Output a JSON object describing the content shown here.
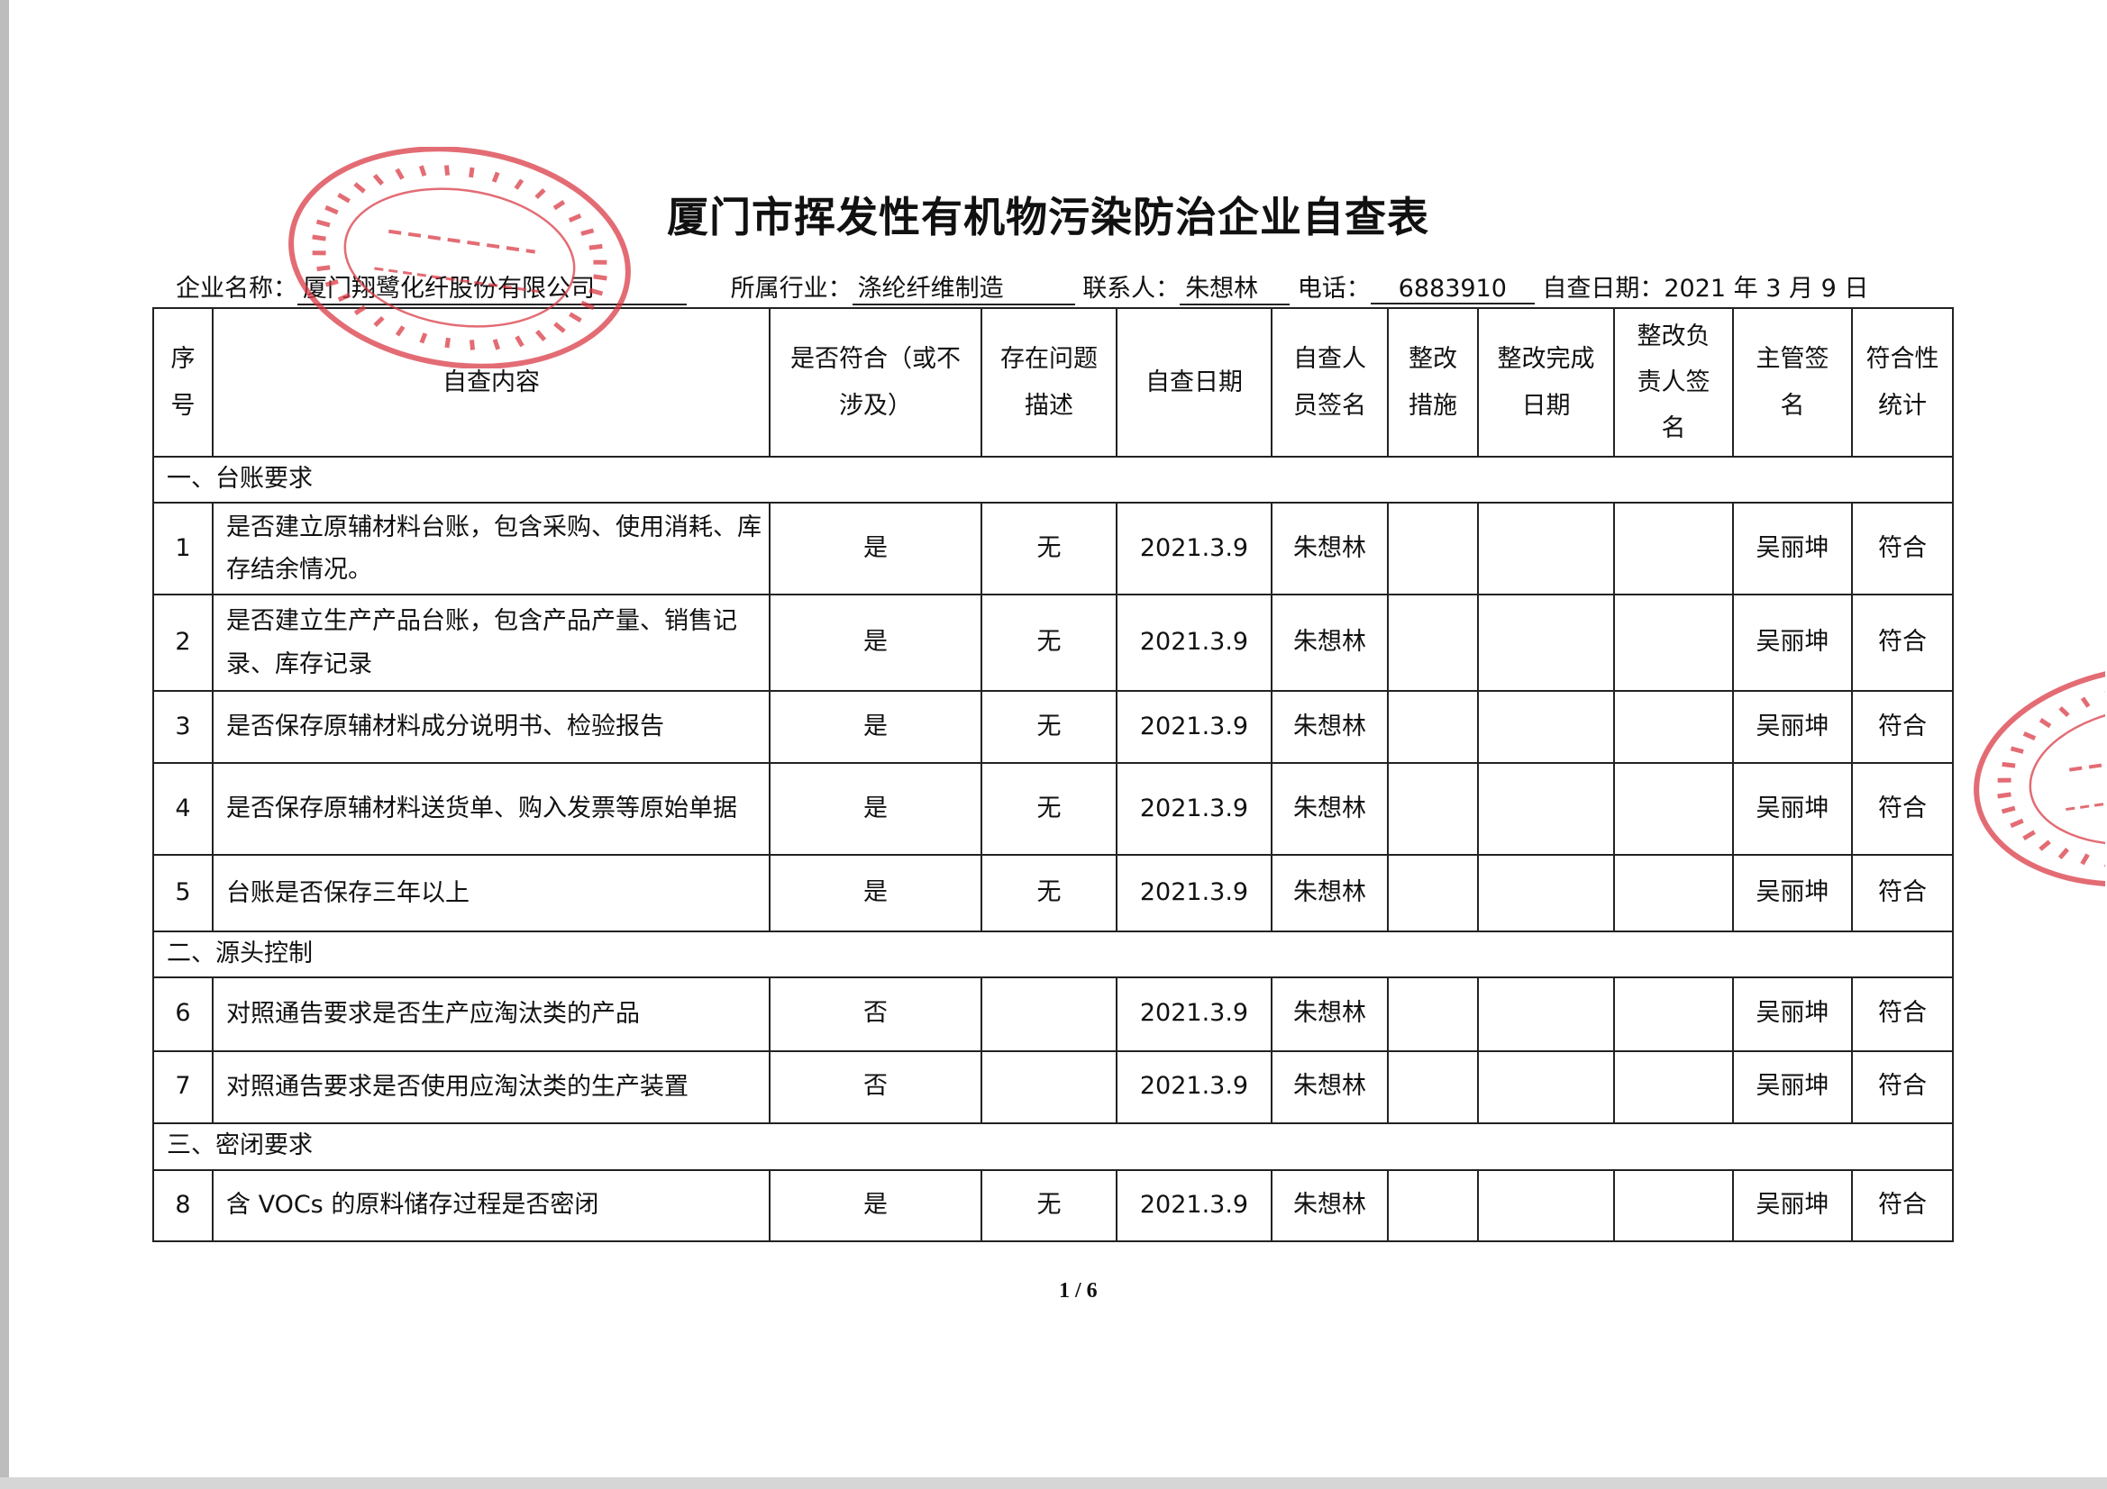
{
  "title": "厦门市挥发性有机物污染防治企业自查表",
  "info": {
    "company_label": "企业名称：",
    "company": "厦门翔鹭化纤股份有限公司",
    "industry_label": "所属行业：",
    "industry": "涤纶纤维制造",
    "contact_label": "联系人：",
    "contact": "朱想林",
    "phone_label": "电话：",
    "phone": "6883910",
    "date_label": "自查日期：2021 年 3 月 9 日"
  },
  "headers": [
    "序号",
    "自查内容",
    "是否符合（或不涉及）",
    "存在问题描述",
    "自查日期",
    "自查人员签名",
    "整改措施",
    "整改完成日期",
    "整改负责人签名",
    "主管签名",
    "符合性统计"
  ],
  "sections": [
    {
      "title": "一、台账要求",
      "rows": [
        {
          "no": "1",
          "content": "是否建立原辅材料台账，包含采购、使用消耗、库存结余情况。",
          "comply": "是",
          "issue": "无",
          "date": "2021.3.9",
          "inspector": "朱想林",
          "measure": "",
          "finish_date": "",
          "owner": "",
          "supervisor": "吴丽坤",
          "stat": "符合"
        },
        {
          "no": "2",
          "content": "是否建立生产产品台账，包含产品产量、销售记录、库存记录",
          "comply": "是",
          "issue": "无",
          "date": "2021.3.9",
          "inspector": "朱想林",
          "measure": "",
          "finish_date": "",
          "owner": "",
          "supervisor": "吴丽坤",
          "stat": "符合"
        },
        {
          "no": "3",
          "content": "是否保存原辅材料成分说明书、检验报告",
          "comply": "是",
          "issue": "无",
          "date": "2021.3.9",
          "inspector": "朱想林",
          "measure": "",
          "finish_date": "",
          "owner": "",
          "supervisor": "吴丽坤",
          "stat": "符合"
        },
        {
          "no": "4",
          "content": "是否保存原辅材料送货单、购入发票等原始单据",
          "comply": "是",
          "issue": "无",
          "date": "2021.3.9",
          "inspector": "朱想林",
          "measure": "",
          "finish_date": "",
          "owner": "",
          "supervisor": "吴丽坤",
          "stat": "符合"
        },
        {
          "no": "5",
          "content": "台账是否保存三年以上",
          "comply": "是",
          "issue": "无",
          "date": "2021.3.9",
          "inspector": "朱想林",
          "measure": "",
          "finish_date": "",
          "owner": "",
          "supervisor": "吴丽坤",
          "stat": "符合"
        }
      ]
    },
    {
      "title": "二、源头控制",
      "rows": [
        {
          "no": "6",
          "content": "对照通告要求是否生产应淘汰类的产品",
          "comply": "否",
          "issue": "",
          "date": "2021.3.9",
          "inspector": "朱想林",
          "measure": "",
          "finish_date": "",
          "owner": "",
          "supervisor": "吴丽坤",
          "stat": "符合"
        },
        {
          "no": "7",
          "content": "对照通告要求是否使用应淘汰类的生产装置",
          "comply": "否",
          "issue": "",
          "date": "2021.3.9",
          "inspector": "朱想林",
          "measure": "",
          "finish_date": "",
          "owner": "",
          "supervisor": "吴丽坤",
          "stat": "符合"
        }
      ]
    },
    {
      "title": "三、密闭要求",
      "rows": [
        {
          "no": "8",
          "content": "含 VOCs 的原料储存过程是否密闭",
          "comply": "是",
          "issue": "无",
          "date": "2021.3.9",
          "inspector": "朱想林",
          "measure": "",
          "finish_date": "",
          "owner": "",
          "supervisor": "吴丽坤",
          "stat": "符合"
        }
      ]
    }
  ],
  "page_number": "1 / 6",
  "stamp": {
    "outer_text": "XIANGLU CHEMICAL FIBER COMPANY LIMITED XIAMEN",
    "inner_line1": "厦门翔鹭",
    "inner_line2": "化纤股份有限公司",
    "color": "#d9343f"
  }
}
